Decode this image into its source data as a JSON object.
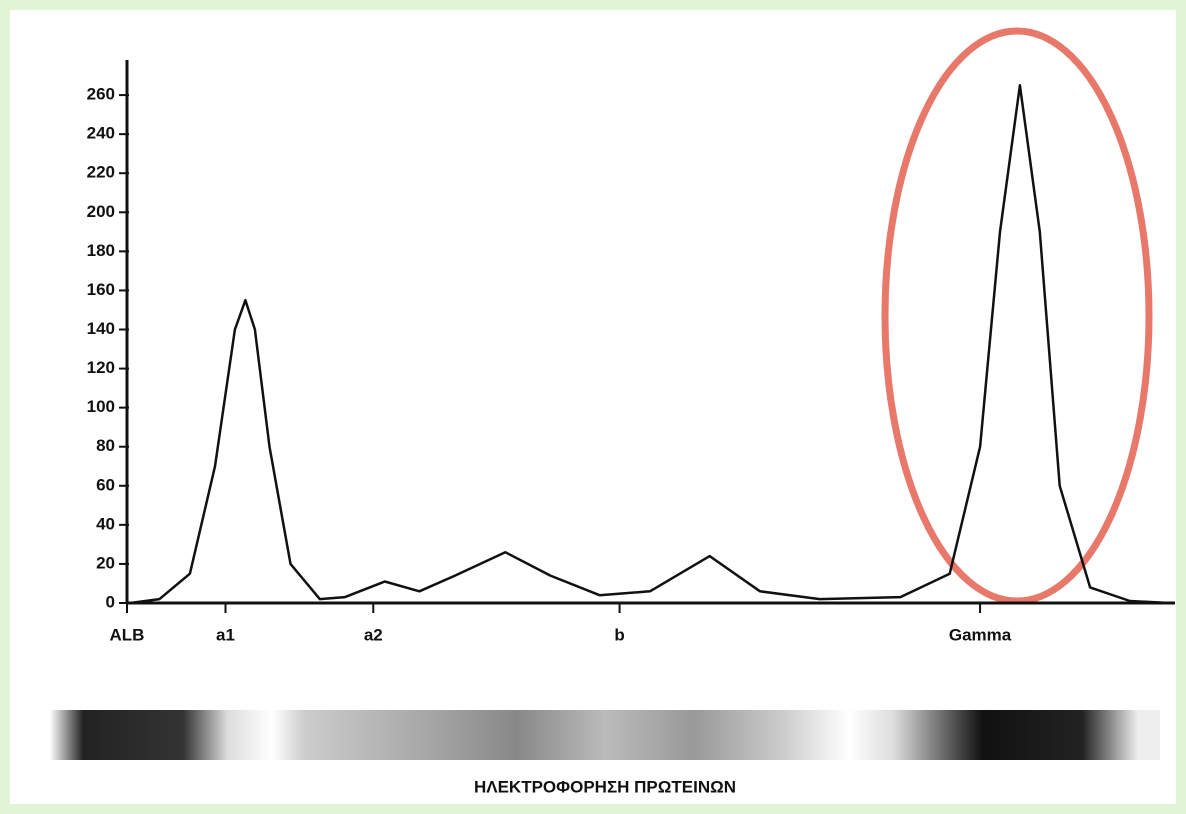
{
  "chart_data": {
    "type": "line",
    "title": "ΗΛΕΚΤΡΟΦΟΡΗΣΗ ΠΡΩΤΕΙΝΩΝ",
    "x": [
      0.3,
      3.1,
      6,
      8.4,
      10.3,
      11.3,
      12.2,
      13.6,
      15.6,
      18.4,
      20.8,
      24.6,
      27.9,
      31.3,
      36.1,
      40.4,
      45.1,
      49.9,
      55.6,
      60.4,
      66.1,
      73.8,
      78.5,
      81.4,
      83.3,
      85.2,
      87.1,
      89,
      91.9,
      95.7,
      99.5
    ],
    "values": [
      0,
      2,
      15,
      70,
      140,
      155,
      140,
      80,
      20,
      2,
      3,
      11,
      6,
      14,
      26,
      14,
      4,
      6,
      24,
      6,
      2,
      3,
      15,
      80,
      190,
      265,
      190,
      60,
      8,
      1,
      0
    ],
    "color": "#111111",
    "xlim": [
      0,
      100
    ],
    "xticks": [
      {
        "value": 0,
        "label": "ALB"
      },
      {
        "value": 9.4,
        "label": "a1"
      },
      {
        "value": 23.5,
        "label": "a2"
      },
      {
        "value": 47,
        "label": "b"
      },
      {
        "value": 81.4,
        "label": "Gamma"
      }
    ],
    "ylim": [
      0,
      280
    ],
    "yticks": [
      0,
      20,
      40,
      60,
      80,
      100,
      120,
      140,
      160,
      180,
      200,
      220,
      240,
      260
    ]
  }
}
